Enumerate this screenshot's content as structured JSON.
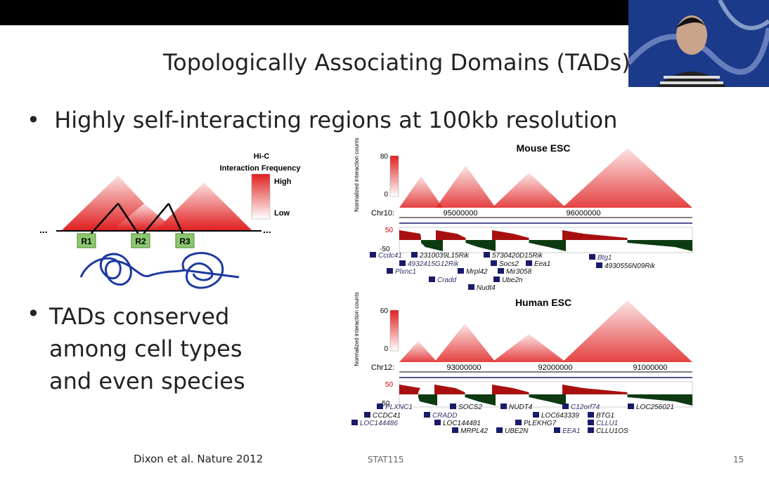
{
  "slide": {
    "title": "Topologically Associating Domains (TADs)",
    "bullets": [
      "Highly self-interacting regions at 100kb resolution",
      "TADs conserved among cell types and even species"
    ],
    "citation": "Dixon et al. Nature 2012",
    "course": "STAT115",
    "page": "15"
  },
  "left_figure": {
    "legend_title": [
      "Hi-C",
      "Interaction Frequency"
    ],
    "legend_high": "High",
    "legend_low": "Low",
    "regions": [
      "R1",
      "R2",
      "R3"
    ],
    "ellipsis": "..."
  },
  "mouse_panel": {
    "title": "Mouse ESC",
    "y_label": "Normalized interaction counts",
    "scale_max": "80",
    "scale_min": "0",
    "chrom": "Chr10:",
    "positions": [
      "95000000",
      "96000000"
    ],
    "di_max": "50",
    "di_min": "-50",
    "genes": [
      "Ccdc41",
      "2310039L15Rik",
      "5730420D15Rik",
      "4932415G12Rik",
      "Socs2",
      "Eea1",
      "Plxnc1",
      "Mrpl42",
      "Mir3058",
      "Cradd",
      "Ube2n",
      "Nudt4",
      "Btg1",
      "4930556N09Rik"
    ]
  },
  "human_panel": {
    "title": "Human ESC",
    "y_label": "Normalized interaction counts",
    "scale_max": "60",
    "scale_min": "0",
    "chrom": "Chr12:",
    "positions": [
      "93000000",
      "92000000",
      "91000000"
    ],
    "di_max": "50",
    "di_min": "-50",
    "genes": [
      "PLXNC1",
      "SOCS2",
      "NUDT4",
      "C12orf74",
      "LOC256021",
      "CCDC41",
      "CRADD",
      "LOC643339",
      "BTG1",
      "LOC144486",
      "LOC144481",
      "PLEKHG7",
      "CLLU1",
      "MRPL42",
      "UBE2N",
      "EEA1",
      "CLLU1OS"
    ]
  }
}
